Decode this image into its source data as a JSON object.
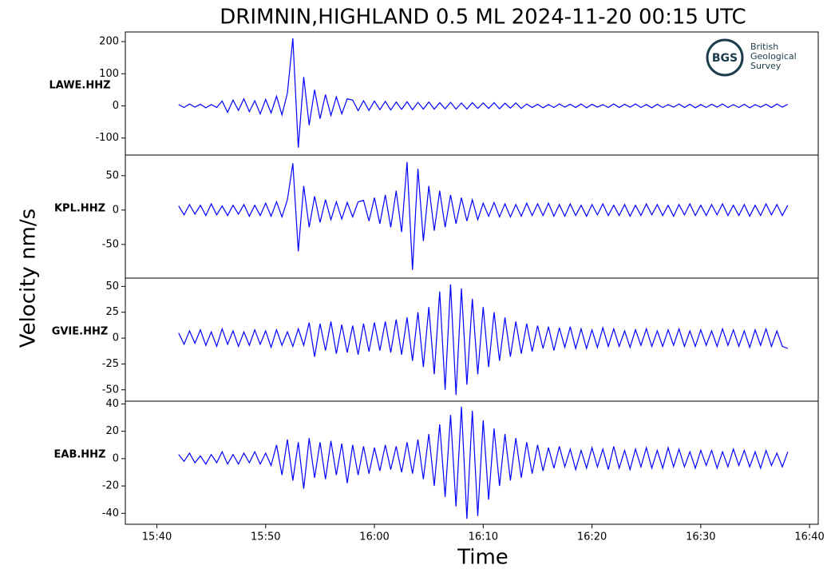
{
  "chart_data": {
    "type": "line",
    "title": "DRIMNIN,HIGHLAND 0.5 ML   2024-11-20 00:15 UTC",
    "xlabel": "Time",
    "ylabel": "Velocity nm/s",
    "logo": {
      "abbr": "BGS",
      "lines": [
        "British",
        "Geological",
        "Survey"
      ]
    },
    "xlim": [
      937.1,
      1000.8
    ],
    "xticks": [
      {
        "value": 940,
        "label": "15:40"
      },
      {
        "value": 950,
        "label": "15:50"
      },
      {
        "value": 960,
        "label": "16:00"
      },
      {
        "value": 970,
        "label": "16:10"
      },
      {
        "value": 980,
        "label": "16:20"
      },
      {
        "value": 990,
        "label": "16:30"
      },
      {
        "value": 1000,
        "label": "16:40"
      }
    ],
    "x": [
      942,
      942.5,
      943,
      943.5,
      944,
      944.5,
      945,
      945.5,
      946,
      946.5,
      947,
      947.5,
      948,
      948.5,
      949,
      949.5,
      950,
      950.5,
      951,
      951.5,
      952,
      952.5,
      953,
      953.5,
      954,
      954.5,
      955,
      955.5,
      956,
      956.5,
      957,
      957.5,
      958,
      958.5,
      959,
      959.5,
      960,
      960.5,
      961,
      961.5,
      962,
      962.5,
      963,
      963.5,
      964,
      964.5,
      965,
      965.5,
      966,
      966.5,
      967,
      967.5,
      968,
      968.5,
      969,
      969.5,
      970,
      970.5,
      971,
      971.5,
      972,
      972.5,
      973,
      973.5,
      974,
      974.5,
      975,
      975.5,
      976,
      976.5,
      977,
      977.5,
      978,
      978.5,
      979,
      979.5,
      980,
      980.5,
      981,
      981.5,
      982,
      982.5,
      983,
      983.5,
      984,
      984.5,
      985,
      985.5,
      986,
      986.5,
      987,
      987.5,
      988,
      988.5,
      989,
      989.5,
      990,
      990.5,
      991,
      991.5,
      992,
      992.5,
      993,
      993.5,
      994,
      994.5,
      995,
      995.5,
      996,
      996.5,
      997,
      997.5,
      998
    ],
    "series": [
      {
        "name": "LAWE.HHZ",
        "color": "#0000ff",
        "ylim": [
          -153,
          230
        ],
        "yticks": [
          200,
          100,
          0,
          -100
        ],
        "values": [
          4,
          -5,
          6,
          -4,
          5,
          -6,
          4,
          -5,
          15,
          -20,
          18,
          -14,
          22,
          -18,
          16,
          -25,
          20,
          -22,
          30,
          -28,
          40,
          210,
          -130,
          90,
          -60,
          50,
          -40,
          35,
          -30,
          28,
          -25,
          22,
          18,
          -15,
          16,
          -14,
          15,
          -12,
          14,
          -13,
          12,
          -11,
          13,
          -12,
          11,
          -10,
          12,
          -10,
          10,
          -9,
          11,
          -10,
          9,
          -10,
          10,
          -8,
          9,
          -8,
          10,
          -9,
          8,
          -7,
          9,
          -8,
          6,
          -5,
          5,
          -6,
          4,
          -5,
          6,
          -4,
          5,
          -5,
          6,
          -6,
          5,
          -4,
          4,
          -5,
          6,
          -5,
          5,
          -4,
          6,
          -5,
          4,
          -6,
          5,
          -5,
          4,
          -4,
          6,
          -5,
          5,
          -6,
          4,
          -5,
          5,
          -4,
          6,
          -5,
          4,
          -5,
          5,
          -6,
          4,
          -4,
          5,
          -5,
          6,
          -4,
          5
        ]
      },
      {
        "name": "KPL.HHZ",
        "color": "#0000ff",
        "ylim": [
          -99,
          80
        ],
        "yticks": [
          50,
          0,
          -50
        ],
        "values": [
          6,
          -7,
          8,
          -6,
          7,
          -8,
          9,
          -7,
          6,
          -8,
          7,
          -6,
          8,
          -9,
          7,
          -8,
          10,
          -9,
          12,
          -10,
          15,
          68,
          -60,
          35,
          -25,
          20,
          -18,
          15,
          -14,
          12,
          -13,
          11,
          -10,
          12,
          14,
          -16,
          18,
          -20,
          22,
          -25,
          28,
          -32,
          70,
          -87,
          60,
          -45,
          35,
          -30,
          28,
          -25,
          22,
          -20,
          18,
          -16,
          15,
          -14,
          10,
          -9,
          11,
          -10,
          9,
          -10,
          8,
          -9,
          10,
          -8,
          9,
          -8,
          10,
          -9,
          8,
          -9,
          9,
          -8,
          7,
          -9,
          8,
          -7,
          9,
          -8,
          7,
          -8,
          8,
          -9,
          7,
          -8,
          9,
          -7,
          8,
          -8,
          7,
          -9,
          8,
          -7,
          9,
          -8,
          7,
          -8,
          8,
          -7,
          9,
          -8,
          7,
          -8,
          8,
          -9,
          7,
          -8,
          9,
          -7,
          8,
          -8,
          7
        ]
      },
      {
        "name": "GVIE.HHZ",
        "color": "#0000ff",
        "ylim": [
          -61,
          58
        ],
        "yticks": [
          50,
          25,
          0,
          -25,
          -50
        ],
        "values": [
          5,
          -6,
          7,
          -5,
          8,
          -7,
          6,
          -8,
          9,
          -6,
          7,
          -8,
          6,
          -7,
          8,
          -6,
          7,
          -9,
          8,
          -7,
          6,
          -8,
          9,
          -7,
          15,
          -18,
          14,
          -12,
          16,
          -15,
          13,
          -14,
          12,
          -16,
          14,
          -13,
          15,
          -12,
          16,
          -14,
          18,
          -16,
          20,
          -22,
          25,
          -28,
          30,
          -35,
          45,
          -50,
          52,
          -55,
          48,
          -45,
          38,
          -35,
          30,
          -28,
          25,
          -22,
          20,
          -18,
          16,
          -15,
          14,
          -13,
          12,
          -10,
          11,
          -12,
          10,
          -9,
          11,
          -10,
          9,
          -10,
          8,
          -9,
          10,
          -8,
          9,
          -8,
          7,
          -9,
          8,
          -7,
          9,
          -8,
          7,
          -8,
          8,
          -7,
          9,
          -8,
          7,
          -8,
          8,
          -7,
          7,
          -8,
          9,
          -7,
          8,
          -8,
          7,
          -9,
          8,
          -7,
          9,
          -8,
          7,
          -8,
          -10
        ]
      },
      {
        "name": "EAB.HHZ",
        "color": "#0000ff",
        "ylim": [
          -48,
          42
        ],
        "yticks": [
          40,
          20,
          0,
          -20,
          -40
        ],
        "values": [
          3,
          -2,
          4,
          -3,
          2,
          -4,
          3,
          -3,
          5,
          -4,
          3,
          -4,
          4,
          -3,
          5,
          -4,
          4,
          -5,
          10,
          -12,
          14,
          -16,
          12,
          -22,
          15,
          -14,
          12,
          -15,
          13,
          -12,
          11,
          -18,
          10,
          -12,
          9,
          -11,
          8,
          -9,
          10,
          -8,
          9,
          -10,
          12,
          -11,
          14,
          -15,
          18,
          -20,
          25,
          -28,
          32,
          -35,
          38,
          -44,
          35,
          -42,
          28,
          -30,
          22,
          -20,
          18,
          -16,
          15,
          -14,
          12,
          -11,
          10,
          -9,
          8,
          -7,
          9,
          -6,
          7,
          -8,
          6,
          -7,
          8,
          -6,
          7,
          -8,
          9,
          -7,
          6,
          -8,
          7,
          -6,
          8,
          -7,
          6,
          -7,
          8,
          -6,
          7,
          -6,
          5,
          -7,
          6,
          -5,
          6,
          -7,
          5,
          -6,
          7,
          -5,
          6,
          -6,
          5,
          -7,
          6,
          -5,
          4,
          -6,
          5
        ]
      }
    ]
  }
}
